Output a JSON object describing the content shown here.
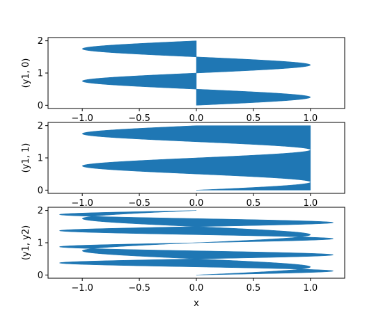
{
  "chart_data": [
    {
      "type": "area",
      "orientation": "horizontal",
      "description": "fill_betweenx(y1, 0)",
      "ylabel": "(y1, 0)",
      "xlabel": "",
      "xlim": [
        -1.3,
        1.3
      ],
      "ylim": [
        -0.1,
        2.1
      ],
      "xticks": [
        -1.0,
        -0.5,
        0.0,
        0.5,
        1.0
      ],
      "xtick_labels": [
        "−1.0",
        "−0.5",
        "0.0",
        "0.5",
        "1.0"
      ],
      "yticks": [
        0,
        1,
        2
      ],
      "ytick_labels": [
        "0",
        "1",
        "2"
      ],
      "curve1": {
        "expr": "sin(2*pi*y)",
        "y_range": [
          0,
          2
        ]
      },
      "curve2": {
        "expr": "0"
      },
      "color": "#1f77b4"
    },
    {
      "type": "area",
      "orientation": "horizontal",
      "description": "fill_betweenx(y1, 1)",
      "ylabel": "(y1, 1)",
      "xlabel": "",
      "xlim": [
        -1.3,
        1.3
      ],
      "ylim": [
        -0.1,
        2.1
      ],
      "xticks": [
        -1.0,
        -0.5,
        0.0,
        0.5,
        1.0
      ],
      "xtick_labels": [
        "−1.0",
        "−0.5",
        "0.0",
        "0.5",
        "1.0"
      ],
      "yticks": [
        0,
        1,
        2
      ],
      "ytick_labels": [
        "0",
        "1",
        "2"
      ],
      "curve1": {
        "expr": "sin(2*pi*y)",
        "y_range": [
          0,
          2
        ]
      },
      "curve2": {
        "expr": "1"
      },
      "color": "#1f77b4"
    },
    {
      "type": "area",
      "orientation": "horizontal",
      "description": "fill_betweenx(y1, y2)",
      "ylabel": "(y1, y2)",
      "xlabel": "x",
      "xlim": [
        -1.3,
        1.3
      ],
      "ylim": [
        -0.1,
        2.1
      ],
      "xticks": [
        -1.0,
        -0.5,
        0.0,
        0.5,
        1.0
      ],
      "xtick_labels": [
        "−1.0",
        "−0.5",
        "0.0",
        "0.5",
        "1.0"
      ],
      "yticks": [
        0,
        1,
        2
      ],
      "ytick_labels": [
        "0",
        "1",
        "2"
      ],
      "curve1": {
        "expr": "sin(2*pi*y)",
        "y_range": [
          0,
          2
        ]
      },
      "curve2": {
        "expr": "1.2*sin(4*pi*y)",
        "y_range": [
          0,
          2
        ]
      },
      "color": "#1f77b4"
    }
  ]
}
